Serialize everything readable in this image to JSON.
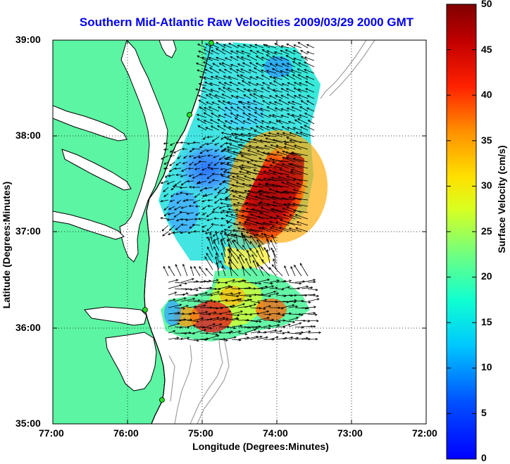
{
  "title": "Southern Mid-Atlantic Raw Velocities 2009/03/29 2000 GMT",
  "axes": {
    "xlabel": "Longitude (Degrees:Minutes)",
    "ylabel": "Latitude (Degrees:Minutes)",
    "x_ticks": [
      "77:00",
      "76:00",
      "75:00",
      "74:00",
      "73:00",
      "72:00"
    ],
    "y_ticks": [
      "39:00",
      "38:00",
      "37:00",
      "36:00",
      "35:00"
    ],
    "x_range_deg_west": [
      77,
      72
    ],
    "y_range_deg_north": [
      35,
      39
    ],
    "grid": "dotted"
  },
  "colorbar": {
    "label": "Surface Velocity (cm/s)",
    "ticks": [
      "0",
      "5",
      "10",
      "15",
      "20",
      "25",
      "30",
      "35",
      "40",
      "45",
      "50"
    ],
    "range": [
      0,
      50
    ],
    "colormap": "jet"
  },
  "colors": {
    "land": "#5cf5a3",
    "coastline": "#000000",
    "bathymetry": "#a0a0a0",
    "site_marker": "#22dd22",
    "title": "#0000ee"
  }
}
